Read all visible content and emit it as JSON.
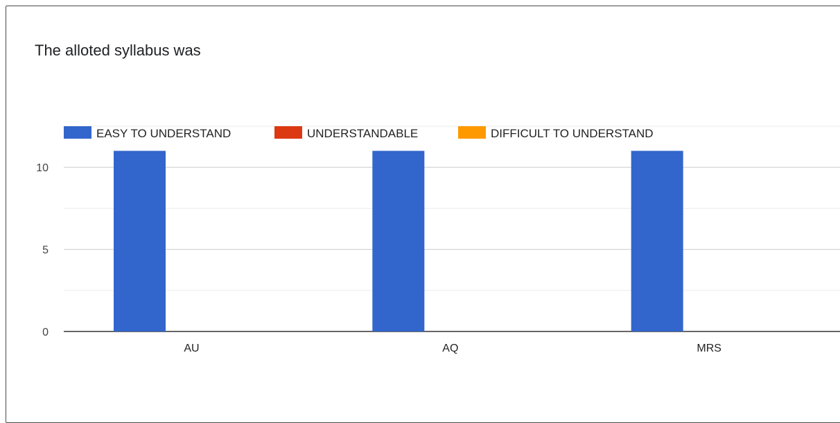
{
  "chart_data": {
    "type": "bar",
    "title": "The alloted syllabus was",
    "categories": [
      "AU",
      "AQ",
      "MRS"
    ],
    "series": [
      {
        "name": "EASY TO UNDERSTAND",
        "color": "#3366CC",
        "values": [
          11,
          11,
          11
        ]
      },
      {
        "name": "UNDERSTANDABLE",
        "color": "#DC3912",
        "values": [
          0,
          0,
          0
        ]
      },
      {
        "name": "DIFFICULT TO UNDERSTAND",
        "color": "#FF9900",
        "values": [
          0,
          0,
          0
        ]
      }
    ],
    "y_ticks": [
      0,
      5,
      10
    ],
    "ylim": [
      0,
      12.5
    ],
    "grid": true,
    "legend_position": "top-left"
  }
}
